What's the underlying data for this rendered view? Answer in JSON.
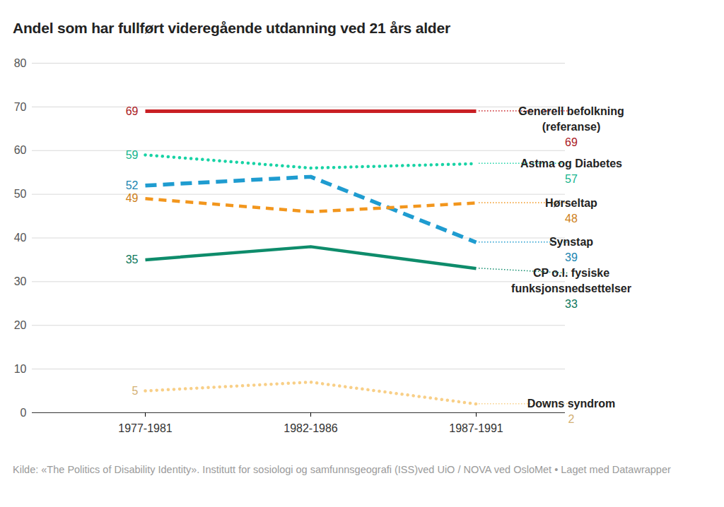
{
  "chart_data": {
    "type": "line",
    "title": "Andel som har fullført videregående utdanning ved 21 års alder",
    "categories": [
      "1977-1981",
      "1982-1986",
      "1987-1991"
    ],
    "ylim": [
      0,
      80
    ],
    "yticks": [
      0,
      10,
      20,
      30,
      40,
      50,
      60,
      70,
      80
    ],
    "grid": true,
    "data_labels": true,
    "series": [
      {
        "name": "Generell befolkning (referanse)",
        "color": "#c91f24",
        "line_style": "solid",
        "values": [
          69,
          69,
          69
        ],
        "value_labels": [
          "69",
          null,
          "69"
        ]
      },
      {
        "name": "Astma og Diabetes",
        "color": "#18d3a5",
        "line_style": "dotted",
        "values": [
          59,
          56,
          57
        ],
        "value_labels": [
          "59",
          null,
          "57"
        ]
      },
      {
        "name": "Hørseltap",
        "color": "#f2961d",
        "line_style": "dashed",
        "values": [
          49,
          46,
          48
        ],
        "value_labels": [
          "49",
          null,
          "48"
        ]
      },
      {
        "name": "Synstap",
        "color": "#1f9cd0",
        "line_style": "dashed",
        "values": [
          52,
          54,
          39
        ],
        "value_labels": [
          "52",
          null,
          "39"
        ]
      },
      {
        "name": "CP o.l. fysiske funksjonsnedsettelser",
        "color": "#0e8c6b",
        "line_style": "solid",
        "values": [
          35,
          38,
          33
        ],
        "value_labels": [
          "35",
          null,
          "33"
        ]
      },
      {
        "name": "Downs syndrom",
        "color": "#f8cf87",
        "line_style": "dotted",
        "values": [
          5,
          7,
          2
        ],
        "value_labels": [
          "5",
          null,
          "2"
        ]
      }
    ],
    "source": "Kilde: «The Politics of Disability Identity». Institutt for sosiologi og samfunnsgeografi (ISS)ved UiO / NOVA ved OsloMet • Laget med Datawrapper"
  }
}
